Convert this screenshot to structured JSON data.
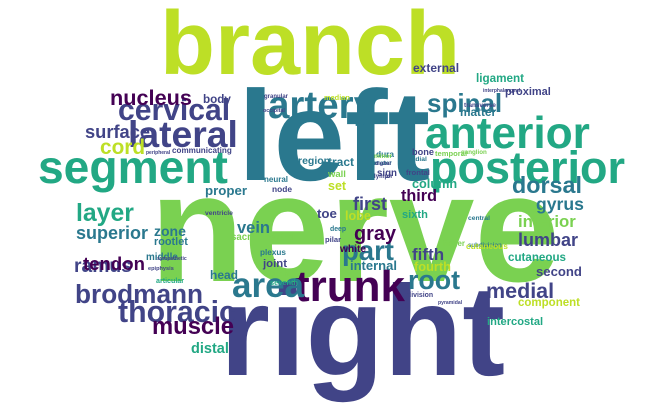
{
  "colors": {
    "background": "#ffffff",
    "palette": [
      "#440154",
      "#414487",
      "#2a788e",
      "#22a884",
      "#7ad151",
      "#bddf26",
      "#fde725"
    ]
  },
  "cloud": {
    "words": [
      {
        "text": "nerve",
        "color": "#7ad151"
      },
      {
        "text": "left",
        "color": "#2a788e"
      },
      {
        "text": "right",
        "color": "#414487"
      },
      {
        "text": "branch",
        "color": "#bddf26"
      },
      {
        "text": "segment",
        "color": "#22a884"
      },
      {
        "text": "posterior",
        "color": "#22a884"
      },
      {
        "text": "anterior",
        "color": "#22a884"
      },
      {
        "text": "spinal",
        "color": "#2a788e"
      },
      {
        "text": "lateral",
        "color": "#414487"
      },
      {
        "text": "cervical",
        "color": "#414487"
      },
      {
        "text": "artery",
        "color": "#2a788e"
      },
      {
        "text": "trunk",
        "color": "#440154"
      },
      {
        "text": "area",
        "color": "#2a788e"
      },
      {
        "text": "root",
        "color": "#2a788e"
      },
      {
        "text": "part",
        "color": "#2a788e"
      },
      {
        "text": "brodmann",
        "color": "#414487"
      },
      {
        "text": "thoracic",
        "color": "#414487"
      },
      {
        "text": "medial",
        "color": "#414487"
      },
      {
        "text": "nucleus",
        "color": "#440154"
      },
      {
        "text": "dorsal",
        "color": "#2a788e"
      },
      {
        "text": "gyrus",
        "color": "#2a788e"
      },
      {
        "text": "lumbar",
        "color": "#414487"
      },
      {
        "text": "cord",
        "color": "#bddf26"
      },
      {
        "text": "surface",
        "color": "#414487"
      },
      {
        "text": "muscle",
        "color": "#440154"
      },
      {
        "text": "ramus",
        "color": "#414487"
      },
      {
        "text": "superior",
        "color": "#2a788e"
      },
      {
        "text": "layer",
        "color": "#22a884"
      },
      {
        "text": "inferior",
        "color": "#7ad151"
      },
      {
        "text": "tendon",
        "color": "#440154"
      },
      {
        "text": "gray",
        "color": "#440154"
      },
      {
        "text": "matter",
        "color": "#2a788e"
      },
      {
        "text": "third",
        "color": "#440154"
      },
      {
        "text": "first",
        "color": "#414487"
      },
      {
        "text": "fifth",
        "color": "#414487"
      },
      {
        "text": "fourth",
        "color": "#bddf26"
      },
      {
        "text": "internal",
        "color": "#2a788e"
      },
      {
        "text": "cutaneous",
        "color": "#22a884"
      },
      {
        "text": "second",
        "color": "#414487"
      },
      {
        "text": "component",
        "color": "#bddf26"
      },
      {
        "text": "intercostal",
        "color": "#22a884"
      },
      {
        "text": "column",
        "color": "#22a884"
      },
      {
        "text": "proper",
        "color": "#2a788e"
      },
      {
        "text": "vein",
        "color": "#2a788e"
      },
      {
        "text": "zone",
        "color": "#2a788e"
      },
      {
        "text": "ligament",
        "color": "#22a884"
      },
      {
        "text": "external",
        "color": "#414487"
      },
      {
        "text": "proximal",
        "color": "#414487"
      },
      {
        "text": "body",
        "color": "#414487"
      },
      {
        "text": "distal",
        "color": "#22a884"
      },
      {
        "text": "head",
        "color": "#2a788e"
      },
      {
        "text": "set",
        "color": "#bddf26"
      },
      {
        "text": "region",
        "color": "#2a788e"
      },
      {
        "text": "tract",
        "color": "#2a788e"
      },
      {
        "text": "lobe",
        "color": "#bddf26"
      },
      {
        "text": "white",
        "color": "#440154"
      },
      {
        "text": "sixth",
        "color": "#22a884"
      },
      {
        "text": "toe",
        "color": "#414487"
      },
      {
        "text": "sacral",
        "color": "#7ad151"
      },
      {
        "text": "ventral",
        "color": "#7ad151"
      },
      {
        "text": "middle",
        "color": "#2a788e"
      },
      {
        "text": "communicating",
        "color": "#414487"
      },
      {
        "text": "bone",
        "color": "#414487"
      },
      {
        "text": "temporal",
        "color": "#7ad151"
      },
      {
        "text": "ganglion",
        "color": "#7ad151"
      },
      {
        "text": "sign",
        "color": "#414487"
      },
      {
        "text": "dura",
        "color": "#2a788e"
      },
      {
        "text": "mater",
        "color": "#2a788e"
      },
      {
        "text": "frontal",
        "color": "#414487"
      },
      {
        "text": "wall",
        "color": "#7ad151"
      },
      {
        "text": "plexus",
        "color": "#2a788e"
      },
      {
        "text": "joint",
        "color": "#414487"
      },
      {
        "text": "eighth",
        "color": "#7ad151"
      },
      {
        "text": "median",
        "color": "#bddf26"
      },
      {
        "text": "division",
        "color": "#414487"
      },
      {
        "text": "finger",
        "color": "#7ad151"
      },
      {
        "text": "central",
        "color": "#2a788e"
      },
      {
        "text": "node",
        "color": "#414487"
      },
      {
        "text": "rootlet",
        "color": "#2a788e"
      },
      {
        "text": "minor",
        "color": "#7ad151"
      },
      {
        "text": "digital",
        "color": "#414487"
      },
      {
        "text": "lymph",
        "color": "#414487"
      },
      {
        "text": "radial",
        "color": "#2a788e"
      },
      {
        "text": "seventh",
        "color": "#22a884"
      },
      {
        "text": "deep",
        "color": "#2a788e"
      },
      {
        "text": "pilar",
        "color": "#414487"
      },
      {
        "text": "neural",
        "color": "#2a788e"
      },
      {
        "text": "occipital",
        "color": "#414487"
      },
      {
        "text": "transverse",
        "color": "#414487"
      },
      {
        "text": "subdivision",
        "color": "#2a788e"
      },
      {
        "text": "granular",
        "color": "#414487"
      },
      {
        "text": "interphalangeal",
        "color": "#414487"
      },
      {
        "text": "pyramidal",
        "color": "#414487"
      },
      {
        "text": "epiphysis",
        "color": "#414487"
      },
      {
        "text": "ventricle",
        "color": "#414487"
      },
      {
        "text": "sympathetic",
        "color": "#414487"
      },
      {
        "text": "articular",
        "color": "#22a884"
      },
      {
        "text": "peripheral",
        "color": "#414487"
      },
      {
        "text": "cutaneous",
        "color": "#bddf26"
      }
    ]
  }
}
